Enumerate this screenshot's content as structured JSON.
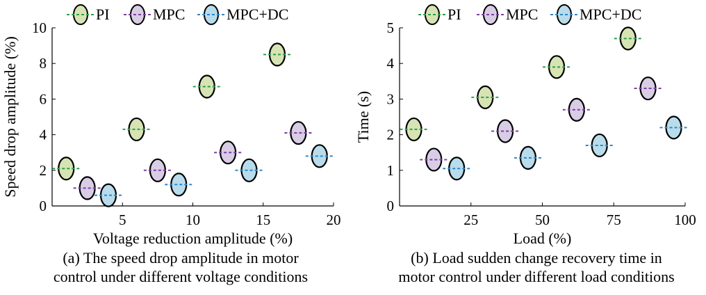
{
  "chart_data": [
    {
      "type": "scatter",
      "id": "a",
      "xlabel": "Voltage reduction amplitude (%)",
      "ylabel": "Speed drop amplitude (%)",
      "xlim": [
        0,
        20
      ],
      "ylim": [
        0,
        10
      ],
      "xticks": [
        "5",
        "10",
        "15",
        "20"
      ],
      "yticks": [
        "0",
        "2",
        "4",
        "6",
        "8",
        "10"
      ],
      "caption": [
        "(a) The speed drop amplitude in motor",
        "control under different voltage conditions"
      ],
      "series": [
        {
          "name": "PI",
          "color_fill": "#d6e4b4",
          "color_line": "#2e9e4a",
          "x": [
            1,
            6,
            11,
            16
          ],
          "y": [
            2.1,
            4.3,
            6.7,
            8.5
          ]
        },
        {
          "name": "MPC",
          "color_fill": "#d9cde6",
          "color_line": "#7b3fa0",
          "x": [
            2.5,
            7.5,
            12.5,
            17.5
          ],
          "y": [
            1.0,
            2.0,
            3.0,
            4.1
          ]
        },
        {
          "name": "MPC+DC",
          "color_fill": "#b8dcec",
          "color_line": "#2f86c8",
          "x": [
            4,
            9,
            14,
            19
          ],
          "y": [
            0.6,
            1.2,
            2.0,
            2.8
          ]
        }
      ]
    },
    {
      "type": "scatter",
      "id": "b",
      "xlabel": "Load (%)",
      "ylabel": "Time (s)",
      "xlim": [
        0,
        100
      ],
      "ylim": [
        0,
        5
      ],
      "xticks": [
        "25",
        "50",
        "75",
        "100"
      ],
      "yticks": [
        "0",
        "1",
        "2",
        "3",
        "4",
        "5"
      ],
      "caption": [
        "(b) Load sudden change recovery time in",
        "motor control under different load conditions"
      ],
      "series": [
        {
          "name": "PI",
          "color_fill": "#d6e4b4",
          "color_line": "#2e9e4a",
          "x": [
            5,
            30,
            55,
            80
          ],
          "y": [
            2.15,
            3.05,
            3.9,
            4.7
          ]
        },
        {
          "name": "MPC",
          "color_fill": "#d9cde6",
          "color_line": "#7b3fa0",
          "x": [
            12,
            37,
            62,
            87
          ],
          "y": [
            1.3,
            2.1,
            2.7,
            3.3
          ]
        },
        {
          "name": "MPC+DC",
          "color_fill": "#b8dcec",
          "color_line": "#2f86c8",
          "x": [
            20,
            45,
            70,
            96
          ],
          "y": [
            1.05,
            1.35,
            1.7,
            2.2
          ]
        }
      ]
    }
  ]
}
